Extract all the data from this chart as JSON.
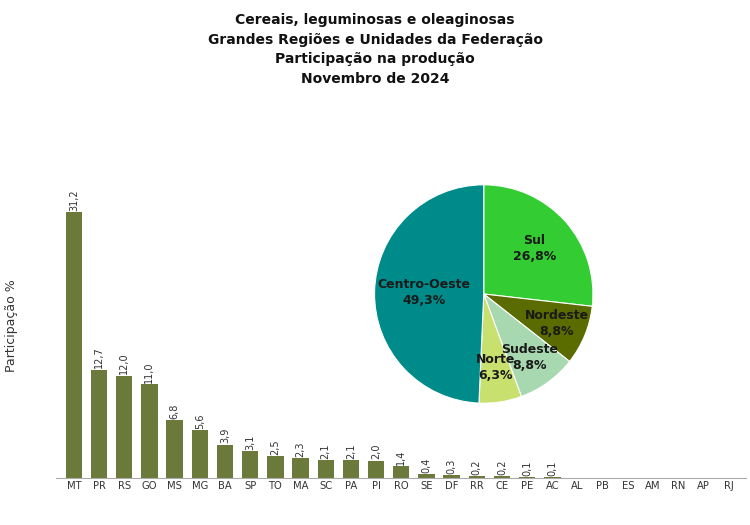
{
  "title_lines": [
    "Cereais, leguminosas e oleaginosas",
    "Grandes Regiões e Unidades da Federação",
    "Participação na produção",
    "Novembro de 2024"
  ],
  "bar_categories": [
    "MT",
    "PR",
    "RS",
    "GO",
    "MS",
    "MG",
    "BA",
    "SP",
    "TO",
    "MA",
    "SC",
    "PA",
    "PI",
    "RO",
    "SE",
    "DF",
    "RR",
    "CE",
    "PE",
    "AC",
    "AL",
    "PB",
    "ES",
    "AM",
    "RN",
    "AP",
    "RJ"
  ],
  "bar_values": [
    31.2,
    12.7,
    12.0,
    11.0,
    6.8,
    5.6,
    3.9,
    3.1,
    2.5,
    2.3,
    2.1,
    2.1,
    2.0,
    1.4,
    0.4,
    0.3,
    0.2,
    0.2,
    0.1,
    0.1,
    0.0,
    0.0,
    0.0,
    0.0,
    0.0,
    0.0,
    0.0
  ],
  "bar_color": "#6b7a3a",
  "ylabel": "Participação %",
  "pie_labels": [
    "Sul\n26,8%",
    "Nordeste\n8,8%",
    "Sudeste\n8,8%",
    "Norte\n6,3%",
    "Centro-Oeste\n49,3%"
  ],
  "pie_label_names": [
    "Sul",
    "Nordeste",
    "Sudeste",
    "Norte",
    "Centro-Oeste"
  ],
  "pie_label_pcts": [
    "26,8%",
    "8,8%",
    "8,8%",
    "6,3%",
    "49,3%"
  ],
  "pie_values": [
    26.8,
    8.8,
    8.8,
    6.3,
    49.3
  ],
  "pie_colors": [
    "#33cc33",
    "#5a6b00",
    "#a8d8b0",
    "#c8e06e",
    "#008b8b"
  ],
  "pie_startangle": 90,
  "background_color": "#ffffff",
  "title_fontsize": 10,
  "bar_label_fontsize": 7,
  "axis_label_fontsize": 9,
  "pie_label_fontsize": 9
}
